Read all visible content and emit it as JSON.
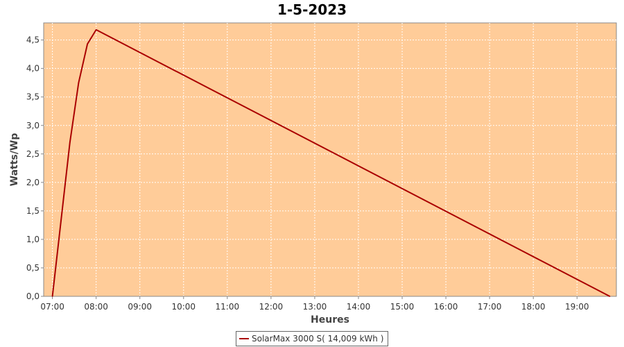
{
  "chart_data": {
    "type": "line",
    "title": "1-5-2023",
    "xlabel": "Heures",
    "ylabel": "Watts/Wp",
    "xlim": [
      "06:48",
      "19:54"
    ],
    "ylim": [
      0,
      4.8
    ],
    "x_ticks": [
      "07:00",
      "08:00",
      "09:00",
      "10:00",
      "11:00",
      "12:00",
      "13:00",
      "14:00",
      "15:00",
      "16:00",
      "17:00",
      "18:00",
      "19:00"
    ],
    "y_ticks": [
      "0,0",
      "0,5",
      "1,0",
      "1,5",
      "2,0",
      "2,5",
      "3,0",
      "3,5",
      "4,0",
      "4,5"
    ],
    "grid": true,
    "legend_position": "bottom-center",
    "plot_background": "#ffcc99",
    "series": [
      {
        "name": "SolarMax 3000 S( 14,009 kWh )",
        "color": "#aa0000",
        "x": [
          "07:00",
          "07:12",
          "07:24",
          "07:36",
          "07:48",
          "08:00",
          "19:45"
        ],
        "y": [
          0.0,
          1.35,
          2.7,
          3.75,
          4.43,
          4.68,
          0.0
        ]
      }
    ]
  }
}
